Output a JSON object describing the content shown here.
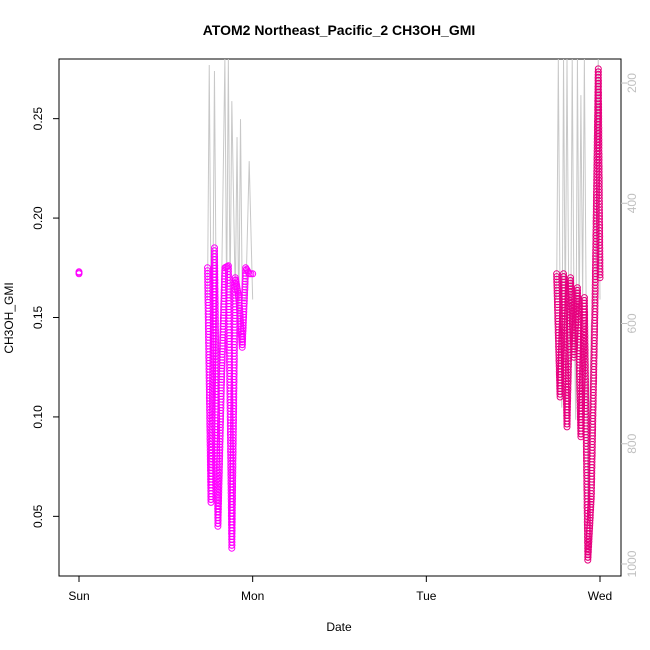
{
  "chart_data": {
    "type": "scatter",
    "title": "ATOM2 Northeast_Pacific_2 CH3OH_GMI",
    "xlabel": "Date",
    "ylabel": "CH3OH_GMI",
    "x_ticks": [
      "Sun",
      "Mon",
      "Tue",
      "Wed"
    ],
    "x_range_days": [
      0,
      3
    ],
    "y_ticks": [
      "0.05",
      "0.10",
      "0.15",
      "0.20",
      "0.25"
    ],
    "ylim": [
      0.02,
      0.28
    ],
    "y2_ticks": [
      "200",
      "400",
      "600",
      "800",
      "1000"
    ],
    "y2lim_reversed": [
      160,
      1020
    ],
    "grid": false,
    "colors": {
      "points_primary": "#ff00ff",
      "points_secondary": "#e6007e",
      "pressure_line": "#c8c8c8",
      "right_axis": "#c0c0c0"
    },
    "series": [
      {
        "marker": "circle",
        "segments": [
          {
            "x": [
              0.0,
              0.0
            ],
            "y": [
              0.173,
              0.172
            ]
          },
          {
            "x": [
              0.74,
              0.76,
              0.78,
              0.8,
              0.82,
              0.84,
              0.86,
              0.88,
              0.9,
              0.92,
              0.94,
              0.96,
              0.98,
              1.0
            ],
            "y": [
              0.175,
              0.057,
              0.185,
              0.045,
              0.116,
              0.175,
              0.176,
              0.034,
              0.17,
              0.16,
              0.135,
              0.175,
              0.172,
              0.172
            ]
          },
          {
            "x": [
              2.75,
              2.77,
              2.79,
              2.81,
              2.83,
              2.85,
              2.87,
              2.89,
              2.91,
              2.93,
              2.95,
              2.97,
              2.99,
              3.0
            ],
            "y": [
              0.172,
              0.11,
              0.172,
              0.095,
              0.17,
              0.13,
              0.165,
              0.09,
              0.16,
              0.028,
              0.06,
              0.15,
              0.275,
              0.17
            ]
          }
        ]
      }
    ],
    "pressure_series": {
      "x": [
        0.74,
        0.75,
        0.76,
        0.77,
        0.78,
        0.79,
        0.8,
        0.82,
        0.84,
        0.85,
        0.86,
        0.87,
        0.88,
        0.9,
        0.91,
        0.92,
        0.93,
        0.94,
        0.96,
        0.98,
        1.0,
        2.75,
        2.76,
        2.77,
        2.78,
        2.79,
        2.8,
        2.81,
        2.82,
        2.83,
        2.84,
        2.85,
        2.86,
        2.87,
        2.88,
        2.89,
        2.9,
        2.91,
        2.92,
        2.93,
        2.95,
        2.97,
        2.99,
        3.0
      ],
      "y": [
        560,
        170,
        560,
        600,
        180,
        560,
        740,
        560,
        160,
        560,
        160,
        560,
        230,
        560,
        290,
        600,
        260,
        560,
        560,
        330,
        560,
        560,
        160,
        560,
        740,
        160,
        600,
        160,
        560,
        700,
        160,
        560,
        760,
        160,
        600,
        220,
        560,
        160,
        560,
        900,
        600,
        560,
        160,
        560
      ]
    }
  }
}
